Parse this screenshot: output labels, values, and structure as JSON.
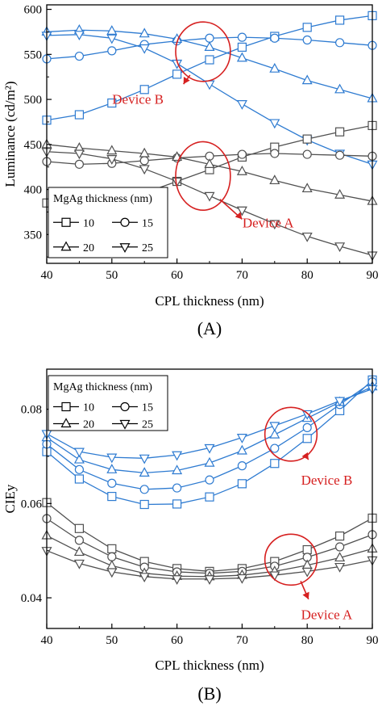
{
  "chart_data": [
    {
      "type": "line",
      "panel_label": "(A)",
      "xlabel": "CPL thickness (nm)",
      "ylabel": "Luminance (cd/m²)",
      "xlim": [
        40,
        90
      ],
      "ylim": [
        318,
        605
      ],
      "x_ticks": [
        40,
        50,
        60,
        70,
        80,
        90
      ],
      "y_ticks": [
        350,
        400,
        450,
        500,
        550,
        600
      ],
      "grid": false,
      "x": [
        40,
        45,
        50,
        55,
        60,
        65,
        70,
        75,
        80,
        85,
        90
      ],
      "legend": {
        "title": "MgAg thickness (nm)",
        "placement": "bottom-left",
        "entries": [
          {
            "label": "10",
            "marker": "square"
          },
          {
            "label": "15",
            "marker": "circle"
          },
          {
            "label": "20",
            "marker": "triangle-up"
          },
          {
            "label": "25",
            "marker": "triangle-down"
          }
        ]
      },
      "series": [
        {
          "group": "Device B",
          "marker": "square",
          "color": "#2e7bd1",
          "values": [
            477,
            483,
            496,
            511,
            528,
            544,
            558,
            570,
            580,
            588,
            593
          ]
        },
        {
          "group": "Device B",
          "marker": "circle",
          "color": "#2e7bd1",
          "values": [
            545,
            548,
            554,
            561,
            565,
            568,
            569,
            568,
            566,
            563,
            560
          ]
        },
        {
          "group": "Device B",
          "marker": "triangle-up",
          "color": "#2e7bd1",
          "values": [
            575,
            577,
            576,
            573,
            567,
            558,
            546,
            534,
            521,
            511,
            501
          ]
        },
        {
          "group": "Device B",
          "marker": "triangle-down",
          "color": "#2e7bd1",
          "values": [
            571,
            572,
            568,
            557,
            540,
            517,
            495,
            474,
            455,
            440,
            428
          ]
        },
        {
          "group": "Device A",
          "marker": "square",
          "color": "#505050",
          "values": [
            385,
            383,
            387,
            396,
            409,
            422,
            436,
            447,
            456,
            464,
            471
          ]
        },
        {
          "group": "Device A",
          "marker": "circle",
          "color": "#505050",
          "values": [
            431,
            428,
            429,
            432,
            435,
            437,
            439,
            440,
            439,
            438,
            437
          ]
        },
        {
          "group": "Device A",
          "marker": "triangle-up",
          "color": "#505050",
          "values": [
            450,
            446,
            443,
            440,
            436,
            428,
            420,
            410,
            401,
            394,
            387
          ]
        },
        {
          "group": "Device A",
          "marker": "triangle-down",
          "color": "#505050",
          "values": [
            442,
            440,
            434,
            423,
            409,
            393,
            377,
            362,
            348,
            337,
            327
          ]
        }
      ],
      "annotations": [
        {
          "text": "Device B",
          "color": "#d62020",
          "ellipse_center": [
            64,
            553
          ],
          "ellipse_radius": [
            4.2,
            33
          ],
          "arrow_to": [
            61,
            517
          ],
          "text_at": [
            54,
            495
          ]
        },
        {
          "text": "Device A",
          "color": "#d62020",
          "ellipse_center": [
            64,
            415
          ],
          "ellipse_radius": [
            4.2,
            38
          ],
          "arrow_to": [
            70,
            367
          ],
          "text_at": [
            74,
            358
          ]
        }
      ]
    },
    {
      "type": "line",
      "panel_label": "(B)",
      "xlabel": "CPL thickness (nm)",
      "ylabel": "CIEy",
      "xlim": [
        40,
        90
      ],
      "ylim": [
        0.0335,
        0.0885
      ],
      "x_ticks": [
        40,
        50,
        60,
        70,
        80,
        90
      ],
      "y_ticks": [
        0.04,
        0.06,
        0.08
      ],
      "y_tick_labels": [
        "0.04",
        "0.06",
        "0.08"
      ],
      "grid": false,
      "x": [
        40,
        45,
        50,
        55,
        60,
        65,
        70,
        75,
        80,
        85,
        90
      ],
      "legend": {
        "title": "MgAg thickness (nm)",
        "placement": "top-left",
        "entries": [
          {
            "label": "10",
            "marker": "square"
          },
          {
            "label": "15",
            "marker": "circle"
          },
          {
            "label": "20",
            "marker": "triangle-up"
          },
          {
            "label": "25",
            "marker": "triangle-down"
          }
        ]
      },
      "series": [
        {
          "group": "Device B",
          "marker": "square",
          "color": "#2e7bd1",
          "values": [
            0.071,
            0.0652,
            0.0615,
            0.0598,
            0.0599,
            0.0614,
            0.0642,
            0.0685,
            0.0738,
            0.0797,
            0.0862
          ]
        },
        {
          "group": "Device B",
          "marker": "circle",
          "color": "#2e7bd1",
          "values": [
            0.0726,
            0.0672,
            0.0643,
            0.063,
            0.0633,
            0.065,
            0.068,
            0.0717,
            0.0761,
            0.081,
            0.0858
          ]
        },
        {
          "group": "Device B",
          "marker": "triangle-up",
          "color": "#2e7bd1",
          "values": [
            0.074,
            0.0693,
            0.0672,
            0.0665,
            0.067,
            0.0686,
            0.0712,
            0.0746,
            0.0781,
            0.0815,
            0.0848
          ]
        },
        {
          "group": "Device B",
          "marker": "triangle-down",
          "color": "#2e7bd1",
          "values": [
            0.0748,
            0.071,
            0.0698,
            0.0696,
            0.0703,
            0.0718,
            0.074,
            0.0765,
            0.079,
            0.0818,
            0.0843
          ]
        },
        {
          "group": "Device A",
          "marker": "square",
          "color": "#505050",
          "values": [
            0.0602,
            0.0547,
            0.0504,
            0.0477,
            0.0462,
            0.0456,
            0.0462,
            0.0477,
            0.0502,
            0.0531,
            0.0569
          ]
        },
        {
          "group": "Device A",
          "marker": "circle",
          "color": "#505050",
          "values": [
            0.0568,
            0.0522,
            0.0487,
            0.0465,
            0.0455,
            0.0452,
            0.0456,
            0.0467,
            0.0486,
            0.0508,
            0.0534
          ]
        },
        {
          "group": "Device A",
          "marker": "triangle-up",
          "color": "#505050",
          "values": [
            0.0532,
            0.0497,
            0.0468,
            0.0452,
            0.0446,
            0.0445,
            0.0448,
            0.0456,
            0.0469,
            0.0485,
            0.0504
          ]
        },
        {
          "group": "Device A",
          "marker": "triangle-down",
          "color": "#505050",
          "values": [
            0.05,
            0.0473,
            0.0455,
            0.0445,
            0.044,
            0.044,
            0.0442,
            0.0448,
            0.0456,
            0.0466,
            0.048
          ]
        }
      ],
      "annotations": [
        {
          "text": "Device B",
          "color": "#d62020",
          "ellipse_center": [
            77.5,
            0.0747
          ],
          "ellipse_radius": [
            4.0,
            0.0057
          ],
          "arrow_to": [
            80.2,
            0.0693
          ],
          "text_at": [
            83,
            0.064
          ]
        },
        {
          "text": "Device A",
          "color": "#d62020",
          "ellipse_center": [
            77.5,
            0.0481
          ],
          "ellipse_radius": [
            4.0,
            0.0054
          ],
          "arrow_to": [
            80.2,
            0.0397
          ],
          "text_at": [
            83,
            0.0355
          ]
        }
      ]
    }
  ]
}
